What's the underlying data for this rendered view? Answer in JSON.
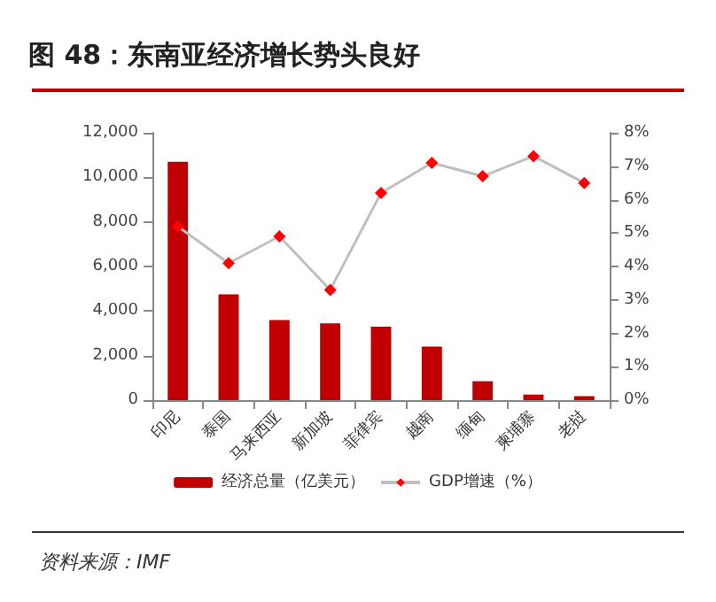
{
  "chart_data": {
    "type": "bar",
    "title": "图 48：东南亚经济增长势头良好",
    "categories": [
      "印尼",
      "泰国",
      "马来西亚",
      "新加坡",
      "菲律宾",
      "越南",
      "缅甸",
      "柬埔寨",
      "老挝"
    ],
    "series": [
      {
        "name": "经济总量（亿美元）",
        "color": "#c00000",
        "values": [
          10700,
          4750,
          3600,
          3450,
          3300,
          2400,
          850,
          250,
          180
        ]
      },
      {
        "name": "GDP增速（%）",
        "type": "line",
        "axis": "y2",
        "color": "#ff0000",
        "marker": "diamond",
        "values": [
          5.2,
          4.1,
          4.9,
          3.3,
          6.2,
          7.1,
          6.7,
          7.3,
          6.5
        ]
      }
    ],
    "ylim": [
      0,
      12000
    ],
    "yticks": [
      {
        "value": 0,
        "label": "0"
      },
      {
        "value": 2000,
        "label": "2,000"
      },
      {
        "value": 4000,
        "label": "4,000"
      },
      {
        "value": 6000,
        "label": "6,000"
      },
      {
        "value": 8000,
        "label": "8,000"
      },
      {
        "value": 10000,
        "label": "10,000"
      },
      {
        "value": 12000,
        "label": "12,000"
      }
    ],
    "y2lim": [
      0,
      8
    ],
    "y2ticks": [
      {
        "value": 0,
        "label": "0%"
      },
      {
        "value": 1,
        "label": "1%"
      },
      {
        "value": 2,
        "label": "2%"
      },
      {
        "value": 3,
        "label": "3%"
      },
      {
        "value": 4,
        "label": "4%"
      },
      {
        "value": 5,
        "label": "5%"
      },
      {
        "value": 6,
        "label": "6%"
      },
      {
        "value": 7,
        "label": "7%"
      },
      {
        "value": 8,
        "label": "8%"
      }
    ],
    "grid": false,
    "legend": "bottom",
    "annotations": [
      "资料来源：IMF"
    ]
  }
}
